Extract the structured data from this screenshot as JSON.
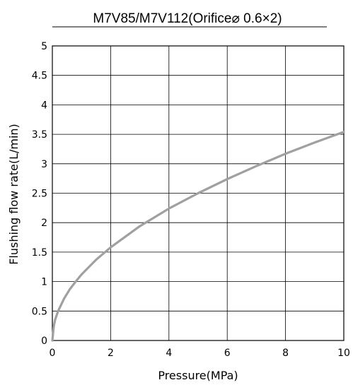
{
  "chart_data": {
    "type": "line",
    "title": "M7V85/M7V112(Orifice⌀ 0.6×2)",
    "xlabel": "Pressure(MPa)",
    "ylabel": "Flushing flow rate(L/min)",
    "xlim": [
      0,
      10
    ],
    "ylim": [
      0,
      5
    ],
    "x_ticks": [
      "0",
      "2",
      "4",
      "6",
      "8",
      "10"
    ],
    "y_ticks": [
      "0",
      "0.5",
      "1",
      "1.5",
      "2",
      "2.5",
      "3",
      "3.5",
      "4",
      "4.5",
      "5"
    ],
    "grid": true,
    "legend": "none",
    "series": [
      {
        "color": "#a0a0a0",
        "x": [
          0,
          0.05,
          0.1,
          0.2,
          0.4,
          0.6,
          0.8,
          1,
          1.5,
          2,
          3,
          4,
          5,
          6,
          7,
          8,
          9,
          10
        ],
        "y": [
          0,
          0.25,
          0.36,
          0.5,
          0.71,
          0.87,
          1.0,
          1.12,
          1.37,
          1.58,
          1.94,
          2.24,
          2.5,
          2.74,
          2.96,
          3.17,
          3.36,
          3.54
        ]
      }
    ]
  }
}
